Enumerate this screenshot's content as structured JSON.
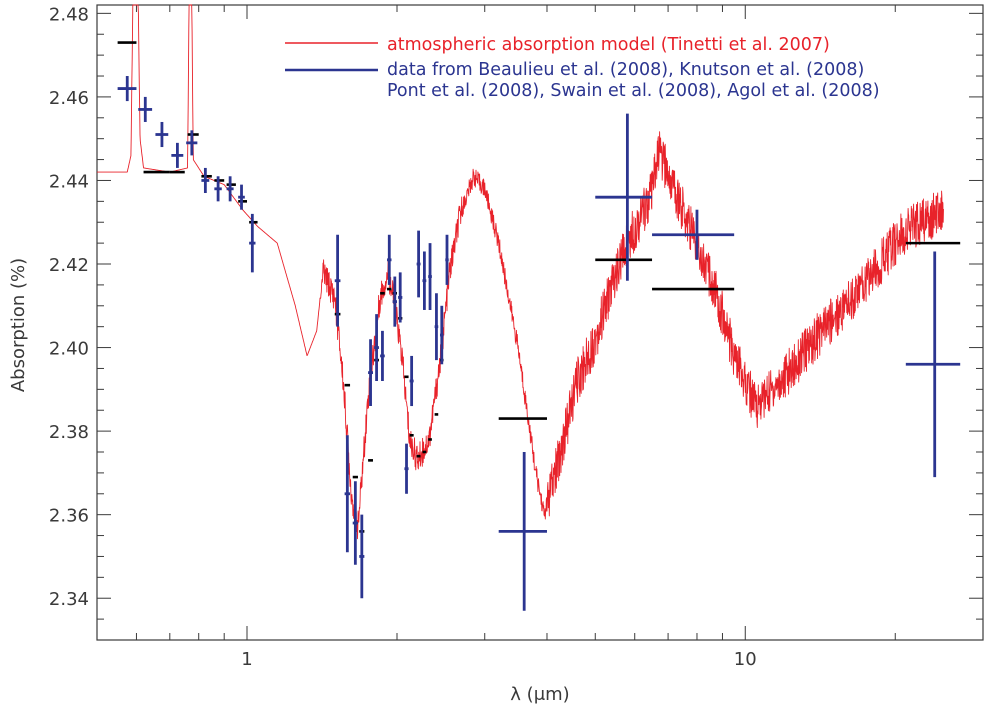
{
  "chart_data": {
    "type": "scatter",
    "title": "",
    "xlabel": "λ (μm)",
    "ylabel": "Absorption (%)",
    "xscale": "log",
    "xlim": [
      0.5,
      30
    ],
    "ylim": [
      2.33,
      2.482
    ],
    "x_tick_labels": [
      "1",
      "10"
    ],
    "y_tick_labels": [
      "2.34",
      "2.36",
      "2.38",
      "2.40",
      "2.42",
      "2.44",
      "2.46",
      "2.48"
    ],
    "grid": false,
    "legend_position": "top-right",
    "legend": [
      {
        "text": "atmospheric absorption model (Tinetti et al. 2007)",
        "color": "#e8222a",
        "marker": "line"
      },
      {
        "text": "data from Beaulieu et al. (2008), Knutson et al. (2008)",
        "color": "#2b3590",
        "marker": "line"
      },
      {
        "text": "Pont et al. (2008), Swain et al. (2008), Agol et al. (2008)",
        "color": "#2b3590",
        "marker": "none"
      }
    ],
    "colors": {
      "model": "#e8222a",
      "data": "#2b3590",
      "binned": "#000000",
      "axis": "#3a3a3a"
    },
    "model_anchors": [
      [
        0.5,
        2.442
      ],
      [
        0.575,
        2.442
      ],
      [
        0.585,
        2.446
      ],
      [
        0.59,
        2.482
      ],
      [
        0.605,
        2.482
      ],
      [
        0.61,
        2.45
      ],
      [
        0.62,
        2.443
      ],
      [
        0.7,
        2.442
      ],
      [
        0.76,
        2.443
      ],
      [
        0.765,
        2.482
      ],
      [
        0.775,
        2.482
      ],
      [
        0.78,
        2.445
      ],
      [
        0.82,
        2.441
      ],
      [
        0.9,
        2.439
      ],
      [
        0.98,
        2.433
      ],
      [
        1.05,
        2.429
      ],
      [
        1.15,
        2.425
      ],
      [
        1.25,
        2.41
      ],
      [
        1.32,
        2.398
      ],
      [
        1.38,
        2.404
      ],
      [
        1.42,
        2.418
      ],
      [
        1.5,
        2.412
      ],
      [
        1.56,
        2.392
      ],
      [
        1.62,
        2.365
      ],
      [
        1.67,
        2.357
      ],
      [
        1.75,
        2.388
      ],
      [
        1.85,
        2.412
      ],
      [
        1.92,
        2.418
      ],
      [
        1.98,
        2.41
      ],
      [
        2.05,
        2.397
      ],
      [
        2.12,
        2.378
      ],
      [
        2.2,
        2.373
      ],
      [
        2.32,
        2.378
      ],
      [
        2.45,
        2.398
      ],
      [
        2.55,
        2.418
      ],
      [
        2.68,
        2.432
      ],
      [
        2.85,
        2.441
      ],
      [
        3.0,
        2.438
      ],
      [
        3.2,
        2.425
      ],
      [
        3.5,
        2.4
      ],
      [
        3.8,
        2.37
      ],
      [
        3.95,
        2.36
      ],
      [
        4.2,
        2.372
      ],
      [
        4.6,
        2.392
      ],
      [
        5.0,
        2.402
      ],
      [
        5.4,
        2.415
      ],
      [
        5.8,
        2.425
      ],
      [
        6.2,
        2.432
      ],
      [
        6.5,
        2.437
      ],
      [
        6.7,
        2.447
      ],
      [
        7.2,
        2.438
      ],
      [
        8.0,
        2.425
      ],
      [
        8.8,
        2.412
      ],
      [
        9.5,
        2.398
      ],
      [
        10.5,
        2.386
      ],
      [
        12.0,
        2.393
      ],
      [
        14.0,
        2.403
      ],
      [
        17.0,
        2.414
      ],
      [
        21.0,
        2.428
      ],
      [
        25.0,
        2.433
      ]
    ],
    "data_points": [
      {
        "x": 0.575,
        "y": 2.462,
        "xerr_lo": 0.55,
        "xerr_hi": 0.6,
        "yerr": 0.003
      },
      {
        "x": 0.625,
        "y": 2.457,
        "xerr_lo": 0.605,
        "xerr_hi": 0.645,
        "yerr": 0.003
      },
      {
        "x": 0.675,
        "y": 2.451,
        "xerr_lo": 0.655,
        "xerr_hi": 0.695,
        "yerr": 0.003
      },
      {
        "x": 0.725,
        "y": 2.446,
        "xerr_lo": 0.705,
        "xerr_hi": 0.745,
        "yerr": 0.003
      },
      {
        "x": 0.775,
        "y": 2.449,
        "xerr_lo": 0.755,
        "xerr_hi": 0.795,
        "yerr": 0.003
      },
      {
        "x": 0.825,
        "y": 2.44,
        "xerr_lo": 0.81,
        "xerr_hi": 0.84,
        "yerr": 0.003
      },
      {
        "x": 0.875,
        "y": 2.438,
        "xerr_lo": 0.86,
        "xerr_hi": 0.89,
        "yerr": 0.003
      },
      {
        "x": 0.925,
        "y": 2.438,
        "xerr_lo": 0.91,
        "xerr_hi": 0.94,
        "yerr": 0.003
      },
      {
        "x": 0.975,
        "y": 2.436,
        "xerr_lo": 0.96,
        "xerr_hi": 0.99,
        "yerr": 0.003
      },
      {
        "x": 1.025,
        "y": 2.425,
        "xerr_lo": 1.01,
        "xerr_hi": 1.04,
        "yerr": 0.007
      },
      {
        "x": 1.52,
        "y": 2.416,
        "xerr_lo": 1.5,
        "xerr_hi": 1.54,
        "yerr": 0.011
      },
      {
        "x": 1.59,
        "y": 2.365,
        "xerr_lo": 1.57,
        "xerr_hi": 1.61,
        "yerr": 0.014
      },
      {
        "x": 1.65,
        "y": 2.358,
        "xerr_lo": 1.63,
        "xerr_hi": 1.67,
        "yerr": 0.01
      },
      {
        "x": 1.7,
        "y": 2.35,
        "xerr_lo": 1.68,
        "xerr_hi": 1.72,
        "yerr": 0.01
      },
      {
        "x": 1.77,
        "y": 2.394,
        "xerr_lo": 1.75,
        "xerr_hi": 1.79,
        "yerr": 0.008
      },
      {
        "x": 1.82,
        "y": 2.4,
        "xerr_lo": 1.8,
        "xerr_hi": 1.84,
        "yerr": 0.008
      },
      {
        "x": 1.87,
        "y": 2.398,
        "xerr_lo": 1.85,
        "xerr_hi": 1.89,
        "yerr": 0.006
      },
      {
        "x": 1.93,
        "y": 2.421,
        "xerr_lo": 1.91,
        "xerr_hi": 1.95,
        "yerr": 0.006
      },
      {
        "x": 1.98,
        "y": 2.411,
        "xerr_lo": 1.96,
        "xerr_hi": 2.0,
        "yerr": 0.006
      },
      {
        "x": 2.03,
        "y": 2.412,
        "xerr_lo": 2.01,
        "xerr_hi": 2.05,
        "yerr": 0.006
      },
      {
        "x": 2.09,
        "y": 2.371,
        "xerr_lo": 2.07,
        "xerr_hi": 2.11,
        "yerr": 0.006
      },
      {
        "x": 2.14,
        "y": 2.392,
        "xerr_lo": 2.12,
        "xerr_hi": 2.16,
        "yerr": 0.006
      },
      {
        "x": 2.21,
        "y": 2.42,
        "xerr_lo": 2.19,
        "xerr_hi": 2.23,
        "yerr": 0.008
      },
      {
        "x": 2.27,
        "y": 2.416,
        "xerr_lo": 2.25,
        "xerr_hi": 2.29,
        "yerr": 0.007
      },
      {
        "x": 2.33,
        "y": 2.417,
        "xerr_lo": 2.31,
        "xerr_hi": 2.35,
        "yerr": 0.008
      },
      {
        "x": 2.4,
        "y": 2.405,
        "xerr_lo": 2.38,
        "xerr_hi": 2.42,
        "yerr": 0.008
      },
      {
        "x": 2.46,
        "y": 2.403,
        "xerr_lo": 2.44,
        "xerr_hi": 2.48,
        "yerr": 0.007
      },
      {
        "x": 2.52,
        "y": 2.421,
        "xerr_lo": 2.5,
        "xerr_hi": 2.54,
        "yerr": 0.006
      },
      {
        "x": 3.6,
        "y": 2.356,
        "xerr_lo": 3.2,
        "xerr_hi": 4.0,
        "yerr": 0.019
      },
      {
        "x": 5.8,
        "y": 2.436,
        "xerr_lo": 5.0,
        "xerr_hi": 6.5,
        "yerr": 0.02
      },
      {
        "x": 8.0,
        "y": 2.427,
        "xerr_lo": 6.5,
        "xerr_hi": 9.5,
        "yerr": 0.006
      },
      {
        "x": 24.0,
        "y": 2.396,
        "xerr_lo": 21.0,
        "xerr_hi": 27.0,
        "yerr": 0.027
      }
    ],
    "binned_model": [
      {
        "x_lo": 0.55,
        "x_hi": 0.6,
        "y": 2.473
      },
      {
        "x_lo": 0.62,
        "x_hi": 0.7,
        "y": 2.442
      },
      {
        "x_lo": 0.7,
        "x_hi": 0.75,
        "y": 2.442
      },
      {
        "x_lo": 0.76,
        "x_hi": 0.8,
        "y": 2.451
      },
      {
        "x_lo": 0.81,
        "x_hi": 0.85,
        "y": 2.441
      },
      {
        "x_lo": 0.86,
        "x_hi": 0.9,
        "y": 2.44
      },
      {
        "x_lo": 0.91,
        "x_hi": 0.95,
        "y": 2.439
      },
      {
        "x_lo": 0.96,
        "x_hi": 1.0,
        "y": 2.435
      },
      {
        "x_lo": 1.01,
        "x_hi": 1.05,
        "y": 2.43
      },
      {
        "x_lo": 1.5,
        "x_hi": 1.54,
        "y": 2.408
      },
      {
        "x_lo": 1.57,
        "x_hi": 1.61,
        "y": 2.391
      },
      {
        "x_lo": 1.63,
        "x_hi": 1.67,
        "y": 2.369
      },
      {
        "x_lo": 1.68,
        "x_hi": 1.72,
        "y": 2.356
      },
      {
        "x_lo": 1.75,
        "x_hi": 1.79,
        "y": 2.373
      },
      {
        "x_lo": 1.8,
        "x_hi": 1.84,
        "y": 2.397
      },
      {
        "x_lo": 1.85,
        "x_hi": 1.89,
        "y": 2.413
      },
      {
        "x_lo": 1.91,
        "x_hi": 1.95,
        "y": 2.414
      },
      {
        "x_lo": 1.96,
        "x_hi": 2.0,
        "y": 2.413
      },
      {
        "x_lo": 2.01,
        "x_hi": 2.05,
        "y": 2.407
      },
      {
        "x_lo": 2.07,
        "x_hi": 2.11,
        "y": 2.393
      },
      {
        "x_lo": 2.12,
        "x_hi": 2.16,
        "y": 2.379
      },
      {
        "x_lo": 2.19,
        "x_hi": 2.23,
        "y": 2.374
      },
      {
        "x_lo": 2.25,
        "x_hi": 2.29,
        "y": 2.375
      },
      {
        "x_lo": 2.31,
        "x_hi": 2.35,
        "y": 2.378
      },
      {
        "x_lo": 2.38,
        "x_hi": 2.42,
        "y": 2.384
      },
      {
        "x_lo": 2.44,
        "x_hi": 2.48,
        "y": 2.397
      },
      {
        "x_lo": 3.2,
        "x_hi": 4.0,
        "y": 2.383
      },
      {
        "x_lo": 5.0,
        "x_hi": 6.5,
        "y": 2.421
      },
      {
        "x_lo": 6.5,
        "x_hi": 9.5,
        "y": 2.414
      },
      {
        "x_lo": 21.0,
        "x_hi": 27.0,
        "y": 2.425
      }
    ]
  }
}
